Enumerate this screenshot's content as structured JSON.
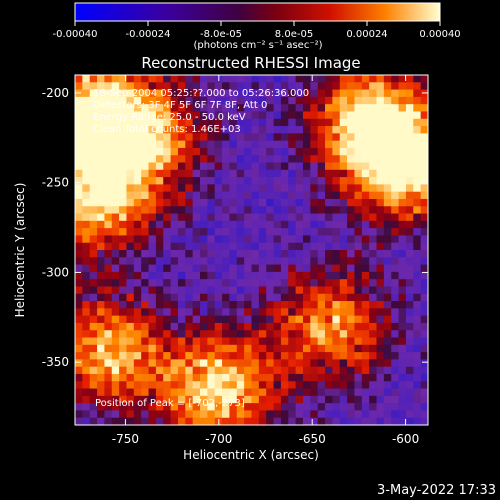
{
  "colorbar": {
    "tick_labels": [
      "-0.00040",
      "-0.00024",
      "-8.0e-05",
      "8.0e-05",
      "0.00024",
      "0.00040"
    ],
    "units": "(photons cm⁻² s⁻¹ asec⁻²)",
    "range": [
      -0.0004,
      0.0004
    ]
  },
  "footer": {
    "timestamp": "3-May-2022 17:33"
  },
  "chart_data": {
    "type": "heatmap",
    "title": "Reconstructed RHESSI Image",
    "xlabel": "Heliocentric X (arcsec)",
    "ylabel": "Heliocentric Y (arcsec)",
    "xlim": [
      -777,
      -588
    ],
    "ylim": [
      -385,
      -190
    ],
    "x_ticks": [
      -750,
      -700,
      -650,
      -600
    ],
    "x_tick_labels": [
      "-750",
      "-700",
      "-650",
      "-600"
    ],
    "y_ticks": [
      -200,
      -250,
      -300,
      -350
    ],
    "y_tick_labels": [
      "-200",
      "-250",
      "-300",
      "-350"
    ],
    "annotations": [
      "18-Sep-2004 05:25:??.000 to 05:26:36.000",
      "Detectors: 3F 4F 5F 6F 7F 8F, Att 0",
      "Energy Range: 25.0 - 50.0 keV",
      "Clean     Total counts: 1.46E+03"
    ],
    "peak_label": "Position of Peak = [-702,-273]",
    "grid": false,
    "colormap": "rainbow-ish (blue → purple → red → orange → yellow → white)",
    "hot_regions": [
      {
        "x": -770,
        "y": -210,
        "level": 0.85
      },
      {
        "x": -740,
        "y": -225,
        "level": 0.7
      },
      {
        "x": -765,
        "y": -260,
        "level": 0.8
      },
      {
        "x": -600,
        "y": -240,
        "level": 0.95
      },
      {
        "x": -620,
        "y": -215,
        "level": 0.8
      },
      {
        "x": -700,
        "y": -365,
        "level": 0.85
      },
      {
        "x": -760,
        "y": -345,
        "level": 0.75
      },
      {
        "x": -640,
        "y": -330,
        "level": 0.7
      }
    ]
  }
}
